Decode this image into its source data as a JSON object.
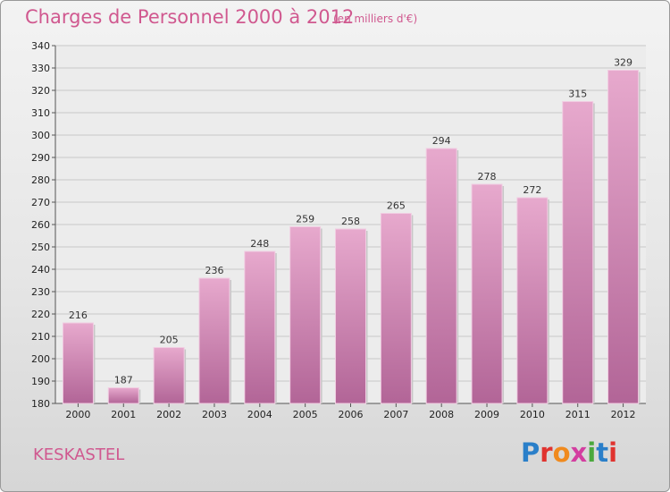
{
  "header": {
    "title": "Charges de Personnel 2000 à 2012",
    "subtitle": "(en milliers d'€)"
  },
  "footer": {
    "town": "KESKASTEL",
    "logo": "Proxiti",
    "logo_colors": [
      "#2a7fc9",
      "#e0332f",
      "#f08a1e",
      "#d33ea0",
      "#4aa83d",
      "#2a7fc9",
      "#e0332f"
    ]
  },
  "chart_data": {
    "type": "bar",
    "categories": [
      "2000",
      "2001",
      "2002",
      "2003",
      "2004",
      "2005",
      "2006",
      "2007",
      "2008",
      "2009",
      "2010",
      "2011",
      "2012"
    ],
    "values": [
      216,
      187,
      205,
      236,
      248,
      259,
      258,
      265,
      294,
      278,
      272,
      315,
      329
    ],
    "ylim": [
      180,
      340
    ],
    "yticks": [
      180,
      190,
      200,
      210,
      220,
      230,
      240,
      250,
      260,
      270,
      280,
      290,
      300,
      310,
      320,
      330,
      340
    ],
    "grid": true,
    "bar_color": "#d987b5",
    "legend": "none"
  }
}
